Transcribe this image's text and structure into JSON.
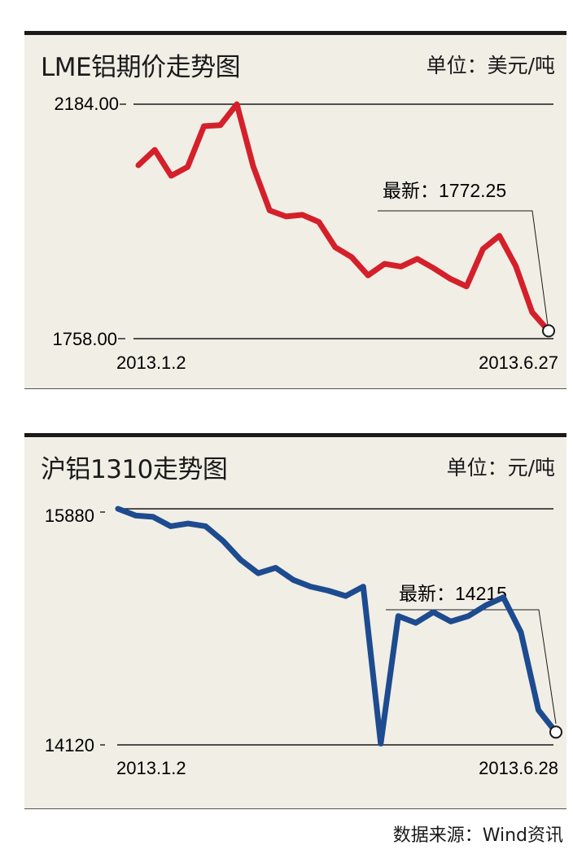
{
  "source": "数据来源：Wind资讯",
  "charts": [
    {
      "id": "lme",
      "title": "LME铝期价走势图",
      "unit": "单位：美元/吨",
      "latest_label": "最新：1772.25",
      "line_color": "#d4202a",
      "chart_data": {
        "type": "line",
        "title": "LME铝期价走势图",
        "unit": "美元/吨",
        "y_ticks": [
          "2184.00",
          "1758.00"
        ],
        "x_ticks": [
          "2013.1.2",
          "2013.6.27"
        ],
        "ylim": [
          1758.0,
          2184.0
        ],
        "x_range": [
          "2013.1.2",
          "2013.6.27"
        ],
        "latest": 1772.25,
        "values": [
          2073,
          2101,
          2054,
          2070,
          2144,
          2146,
          2184,
          2071,
          1991,
          1980,
          1983,
          1970,
          1924,
          1906,
          1873,
          1894,
          1889,
          1903,
          1886,
          1867,
          1853,
          1921,
          1945,
          1890,
          1806,
          1772.25
        ]
      }
    },
    {
      "id": "shfe",
      "title": "沪铝1310走势图",
      "unit": "单位：元/吨",
      "latest_label": "最新：14215",
      "line_color": "#1d4b8f",
      "chart_data": {
        "type": "line",
        "title": "沪铝1310走势图",
        "unit": "元/吨",
        "y_ticks": [
          "15880",
          "14120"
        ],
        "x_ticks": [
          "2013.1.2",
          "2013.6.28"
        ],
        "ylim": [
          14120,
          15880
        ],
        "x_range": [
          "2013.1.2",
          "2013.6.28"
        ],
        "latest": 14215,
        "values": [
          15880,
          15830,
          15820,
          15750,
          15770,
          15750,
          15640,
          15500,
          15400,
          15440,
          15350,
          15300,
          15270,
          15230,
          15300,
          14130,
          15080,
          15030,
          15110,
          15040,
          15080,
          15160,
          15220,
          14960,
          14380,
          14215
        ]
      }
    }
  ]
}
